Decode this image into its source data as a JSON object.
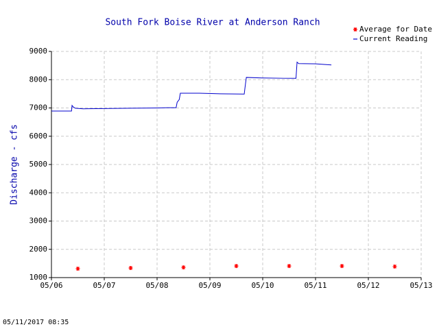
{
  "chart_data": {
    "type": "line",
    "title": "South Fork Boise River at Anderson Ranch",
    "ylabel": "Discharge - cfs",
    "footer": "05/11/2017 08:35",
    "xlim": [
      0,
      7
    ],
    "xticks": [
      {
        "value": 0,
        "label": "05/06"
      },
      {
        "value": 1,
        "label": "05/07"
      },
      {
        "value": 2,
        "label": "05/08"
      },
      {
        "value": 3,
        "label": "05/09"
      },
      {
        "value": 4,
        "label": "05/10"
      },
      {
        "value": 5,
        "label": "05/11"
      },
      {
        "value": 6,
        "label": "05/12"
      },
      {
        "value": 7,
        "label": "05/13"
      }
    ],
    "ylim": [
      1000,
      9000
    ],
    "yticks": [
      1000,
      2000,
      3000,
      4000,
      5000,
      6000,
      7000,
      8000,
      9000
    ],
    "grid": true,
    "legend": "top-right",
    "series": [
      {
        "name": "Average for Date",
        "color": "#ff0000",
        "marker": "star",
        "x": [
          0.5,
          1.5,
          2.5,
          3.5,
          4.5,
          5.5,
          6.5
        ],
        "values": [
          1315,
          1340,
          1360,
          1410,
          1410,
          1410,
          1390
        ]
      },
      {
        "name": "Current Reading",
        "color": "#0000cc",
        "marker": "line",
        "x": [
          0,
          0.38,
          0.39,
          0.41,
          0.45,
          0.6,
          1.0,
          1.5,
          2.0,
          2.2,
          2.36,
          2.38,
          2.42,
          2.44,
          2.8,
          3.2,
          3.65,
          3.67,
          3.69,
          4.0,
          4.4,
          4.63,
          4.65,
          4.68,
          5.0,
          5.3
        ],
        "values": [
          6890,
          6890,
          7090,
          7040,
          6990,
          6970,
          6980,
          6990,
          7000,
          7010,
          7010,
          7200,
          7300,
          7520,
          7520,
          7500,
          7490,
          7800,
          8080,
          8060,
          8050,
          8050,
          8620,
          8570,
          8560,
          8520
        ]
      }
    ]
  }
}
